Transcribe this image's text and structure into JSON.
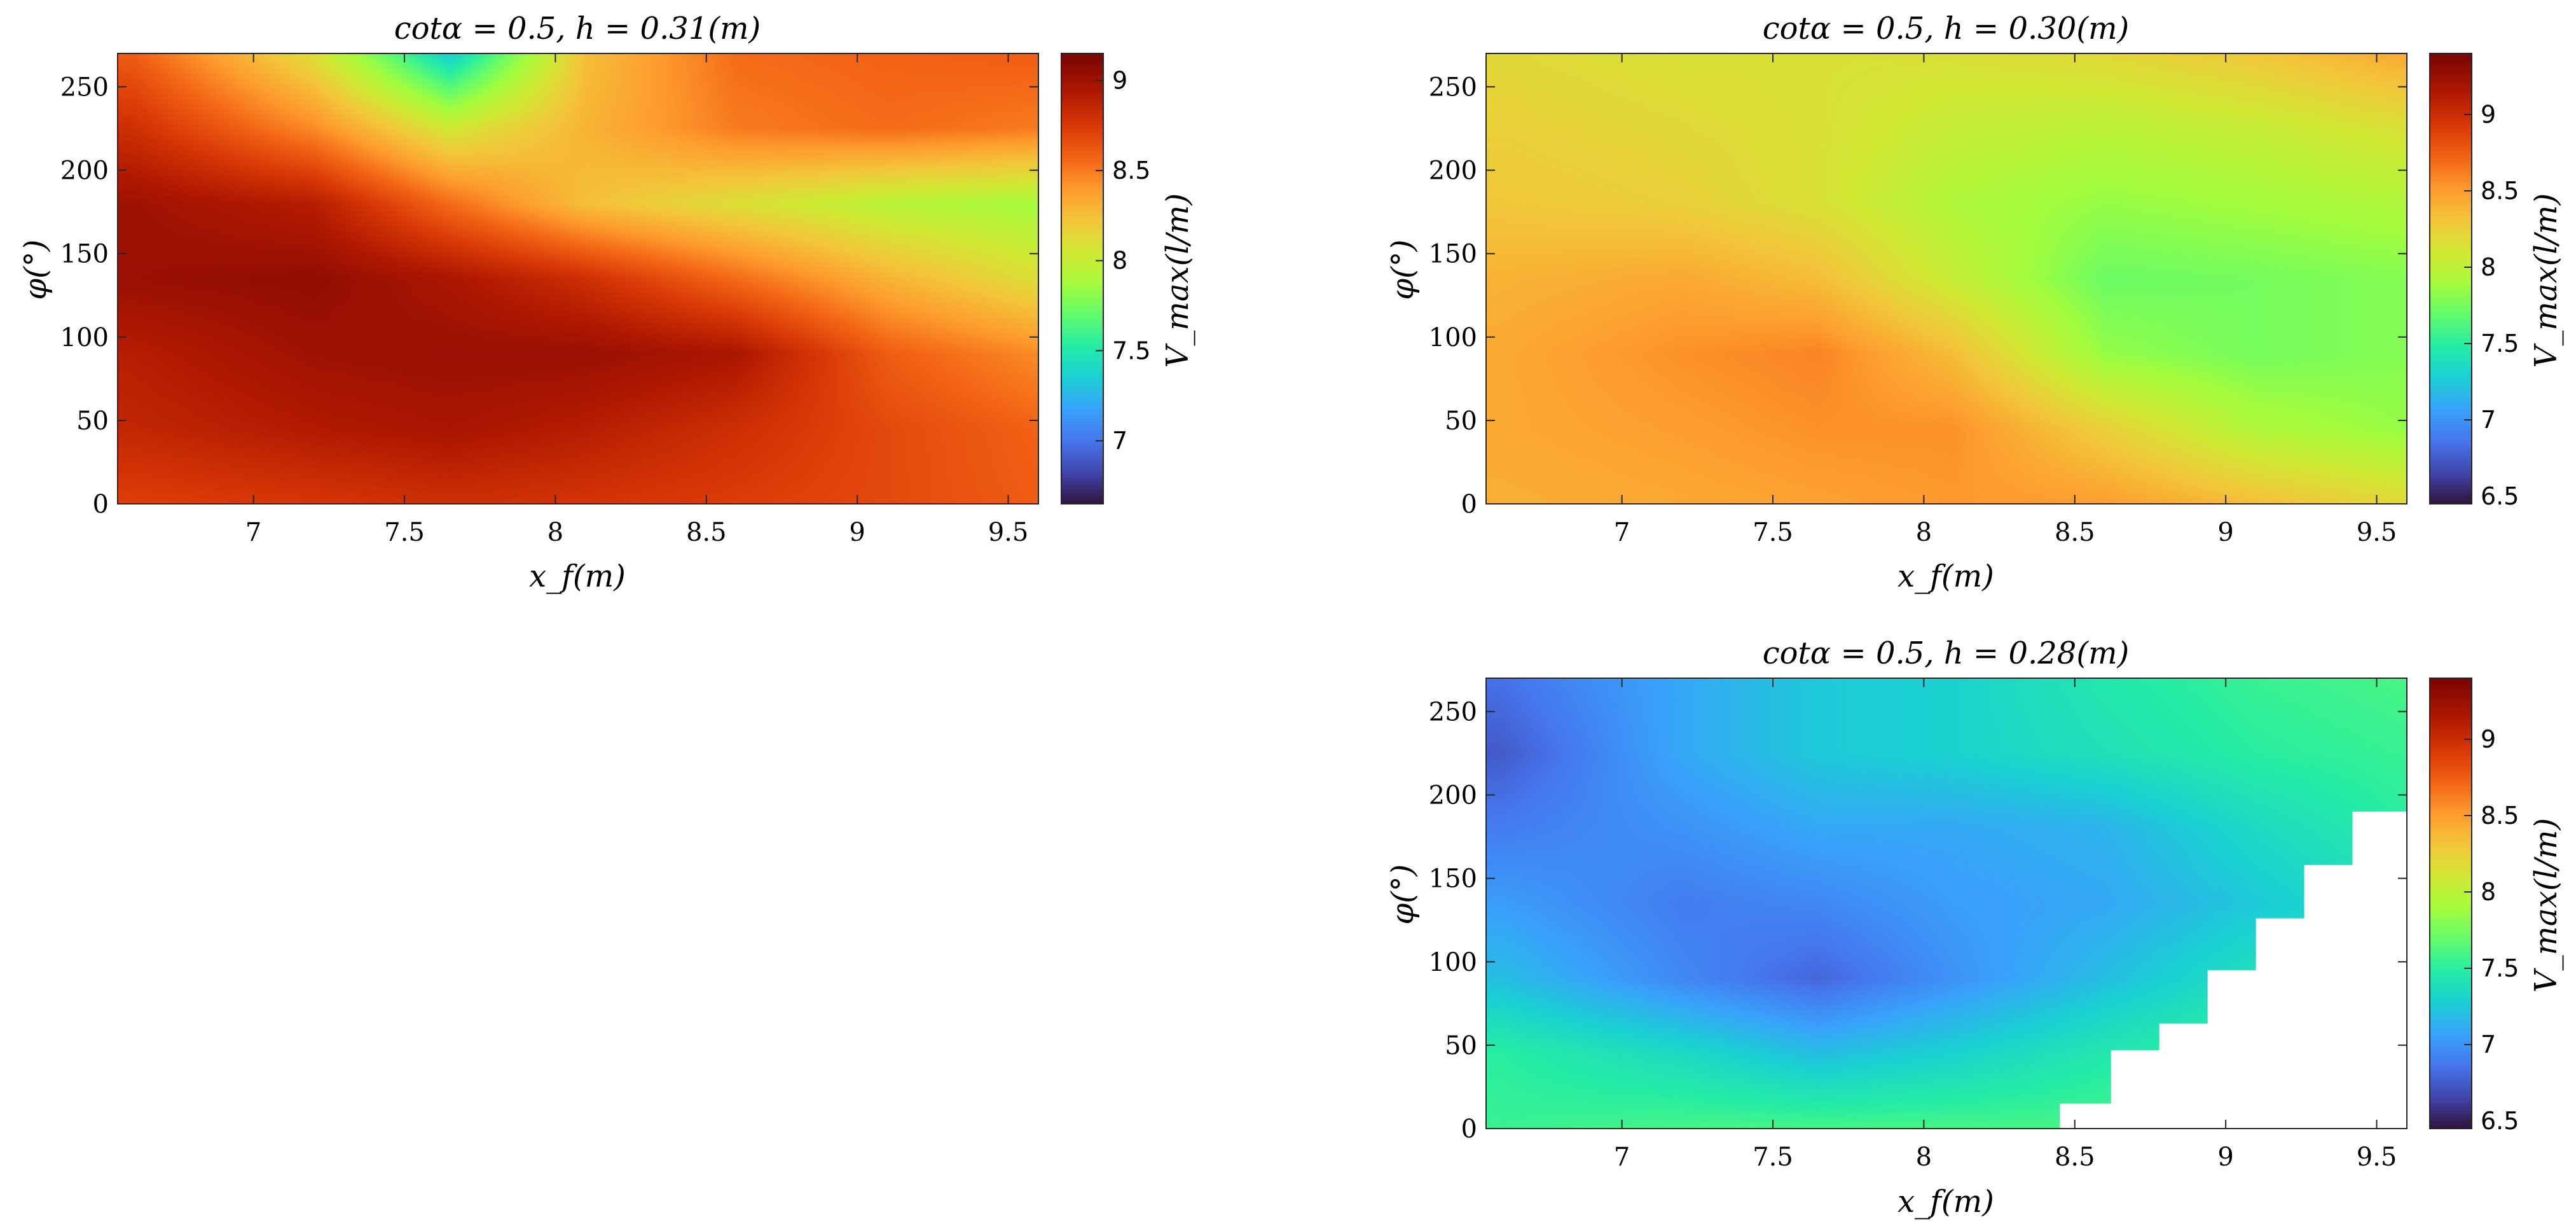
{
  "chart_data": [
    {
      "type": "heatmap",
      "title": "cotα = 0.5, h = 0.31(m)",
      "xlabel": "x_f(m)",
      "ylabel": "φ(°)",
      "colorbar_label": "V_max(l/m)",
      "xlim": [
        6.55,
        9.6
      ],
      "ylim": [
        0,
        270
      ],
      "xticks": [
        "7",
        "7.5",
        "8",
        "8.5",
        "9",
        "9.5"
      ],
      "yticks": [
        "0",
        "50",
        "100",
        "150",
        "200",
        "250"
      ],
      "clim": [
        6.65,
        9.15
      ],
      "cbticks": [
        "7",
        "7.5",
        "8",
        "8.5",
        "9"
      ],
      "colormap": "turbo",
      "x": [
        6.6,
        7.2,
        7.65,
        8.1,
        8.6,
        9.1,
        9.6
      ],
      "y": [
        0,
        45,
        90,
        135,
        180,
        225,
        270
      ],
      "z": [
        [
          8.72,
          8.76,
          8.8,
          8.77,
          8.73,
          8.68,
          8.6
        ],
        [
          8.85,
          8.92,
          8.96,
          8.9,
          8.8,
          8.68,
          8.58
        ],
        [
          8.9,
          9.0,
          9.02,
          9.02,
          8.95,
          8.6,
          8.45
        ],
        [
          9.02,
          9.05,
          8.95,
          8.8,
          8.55,
          8.3,
          8.1
        ],
        [
          9.0,
          8.9,
          8.55,
          8.25,
          8.1,
          7.95,
          7.88
        ],
        [
          8.8,
          8.45,
          8.05,
          8.3,
          8.5,
          8.55,
          8.5
        ],
        [
          8.6,
          8.1,
          7.35,
          8.25,
          8.55,
          8.58,
          8.6
        ]
      ]
    },
    {
      "type": "heatmap",
      "title": "cotα = 0.5, h = 0.30(m)",
      "xlabel": "x_f(m)",
      "ylabel": "φ(°)",
      "colorbar_label": "V_max(l/m)",
      "xlim": [
        6.55,
        9.6
      ],
      "ylim": [
        0,
        270
      ],
      "xticks": [
        "7",
        "7.5",
        "8",
        "8.5",
        "9",
        "9.5"
      ],
      "yticks": [
        "0",
        "50",
        "100",
        "150",
        "200",
        "250"
      ],
      "clim": [
        6.45,
        9.4
      ],
      "cbticks": [
        "6.5",
        "7",
        "7.5",
        "8",
        "8.5",
        "9"
      ],
      "colormap": "turbo",
      "x": [
        6.6,
        7.2,
        7.65,
        8.1,
        8.6,
        9.1,
        9.6
      ],
      "y": [
        0,
        45,
        90,
        135,
        180,
        225,
        270
      ],
      "z": [
        [
          8.42,
          8.45,
          8.48,
          8.52,
          8.5,
          8.35,
          8.2
        ],
        [
          8.45,
          8.5,
          8.55,
          8.55,
          8.25,
          7.95,
          7.85
        ],
        [
          8.45,
          8.55,
          8.6,
          8.35,
          7.85,
          7.75,
          7.8
        ],
        [
          8.4,
          8.45,
          8.35,
          8.05,
          7.72,
          7.75,
          7.8
        ],
        [
          8.3,
          8.25,
          8.15,
          7.95,
          7.85,
          7.9,
          7.95
        ],
        [
          8.25,
          8.2,
          8.15,
          8.05,
          8.0,
          8.05,
          8.15
        ],
        [
          8.2,
          8.15,
          8.15,
          8.15,
          8.2,
          8.3,
          8.45
        ]
      ]
    },
    {
      "type": "heatmap",
      "title": "cotα = 0.5, h = 0.28(m)",
      "xlabel": "x_f(m)",
      "ylabel": "φ(°)",
      "colorbar_label": "V_max(l/m)",
      "xlim": [
        6.55,
        9.6
      ],
      "ylim": [
        0,
        270
      ],
      "xticks": [
        "7",
        "7.5",
        "8",
        "8.5",
        "9",
        "9.5"
      ],
      "yticks": [
        "0",
        "50",
        "100",
        "150",
        "200",
        "250"
      ],
      "clim": [
        6.45,
        9.4
      ],
      "cbticks": [
        "6.5",
        "7",
        "7.5",
        "8",
        "8.5",
        "9"
      ],
      "colormap": "turbo",
      "x": [
        6.6,
        7.2,
        7.65,
        8.1,
        8.6,
        9.1,
        9.6
      ],
      "y": [
        0,
        45,
        90,
        135,
        180,
        225,
        270
      ],
      "z": [
        [
          7.55,
          7.6,
          7.6,
          7.6,
          7.6,
          7.6,
          7.6
        ],
        [
          7.5,
          7.35,
          7.2,
          7.3,
          7.45,
          7.55,
          7.6
        ],
        [
          7.2,
          6.95,
          6.8,
          7.0,
          7.2,
          7.4,
          7.5
        ],
        [
          7.05,
          6.9,
          6.95,
          7.05,
          7.1,
          7.25,
          7.4
        ],
        [
          6.9,
          7.0,
          7.1,
          7.1,
          7.15,
          7.35,
          7.5
        ],
        [
          6.75,
          7.1,
          7.25,
          7.3,
          7.4,
          7.5,
          7.55
        ],
        [
          6.85,
          7.1,
          7.25,
          7.3,
          7.45,
          7.55,
          7.6
        ]
      ],
      "masked_region": {
        "description": "no data (white) below a staircase boundary on the right",
        "steps": [
          {
            "x_from": 8.45,
            "y_below": 15
          },
          {
            "x_from": 8.62,
            "y_below": 47
          },
          {
            "x_from": 8.78,
            "y_below": 63
          },
          {
            "x_from": 8.94,
            "y_below": 95
          },
          {
            "x_from": 9.1,
            "y_below": 126
          },
          {
            "x_from": 9.26,
            "y_below": 158
          },
          {
            "x_from": 9.42,
            "y_below": 190
          }
        ]
      }
    }
  ]
}
